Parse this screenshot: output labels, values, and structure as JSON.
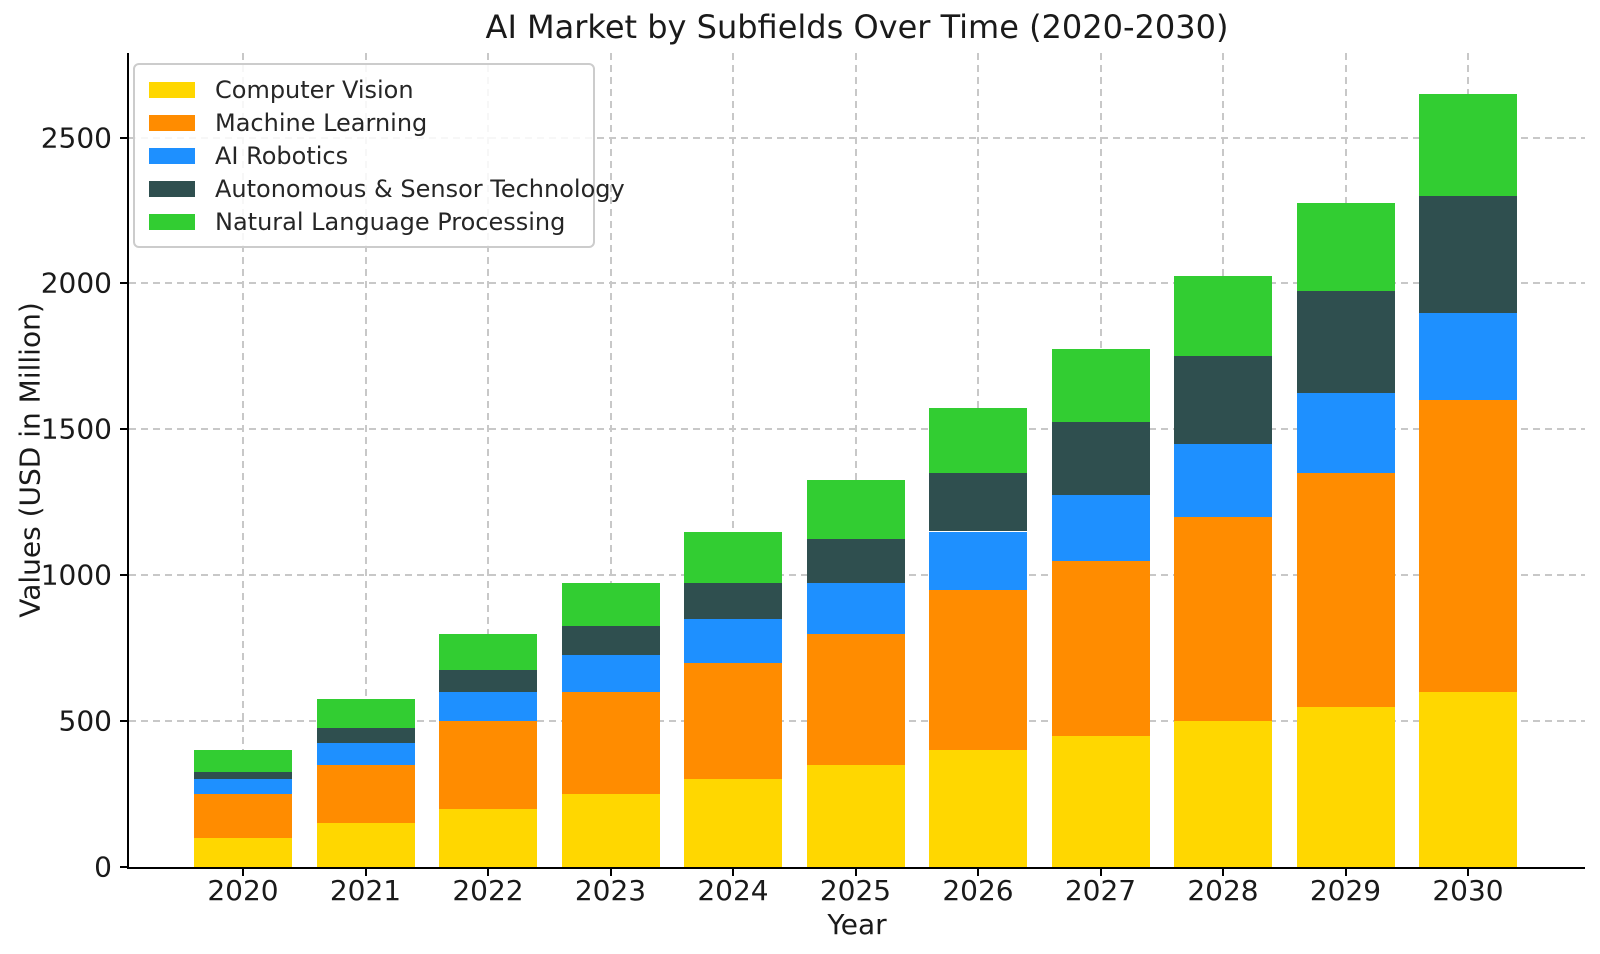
{
  "chart_data": {
    "type": "bar",
    "stacked": true,
    "title": "AI Market by Subfields Over Time (2020-2030)",
    "xlabel": "Year",
    "ylabel": "Values (USD in Million)",
    "categories": [
      "2020",
      "2021",
      "2022",
      "2023",
      "2024",
      "2025",
      "2026",
      "2027",
      "2028",
      "2029",
      "2030"
    ],
    "series": [
      {
        "name": "Computer Vision",
        "color": "#FFD700",
        "values": [
          100,
          150,
          200,
          250,
          300,
          350,
          400,
          450,
          500,
          550,
          600
        ]
      },
      {
        "name": "Machine Learning",
        "color": "#FF8C00",
        "values": [
          150,
          200,
          300,
          350,
          400,
          450,
          550,
          600,
          700,
          800,
          1000
        ]
      },
      {
        "name": "AI Robotics",
        "color": "#1E90FF",
        "values": [
          50,
          75,
          100,
          125,
          150,
          175,
          200,
          225,
          250,
          275,
          300
        ]
      },
      {
        "name": "Autonomous & Sensor Technology",
        "color": "#2F4F4F",
        "values": [
          25,
          50,
          75,
          100,
          125,
          150,
          200,
          250,
          300,
          350,
          400
        ]
      },
      {
        "name": "Natural Language Processing",
        "color": "#32CD32",
        "values": [
          75,
          100,
          125,
          150,
          175,
          200,
          225,
          250,
          275,
          300,
          350
        ]
      }
    ],
    "totals": [
      400,
      575,
      800,
      975,
      1150,
      1325,
      1575,
      1775,
      2025,
      2275,
      2650
    ],
    "yticks": [
      0,
      500,
      1000,
      1500,
      2000,
      2500
    ],
    "ylim": [
      0,
      2790
    ],
    "grid": true,
    "grid_style": "dashed",
    "legend_position": "upper left",
    "background_color": "#ffffff",
    "axis_color": "#000000",
    "grid_color": "#c8c8c8"
  }
}
